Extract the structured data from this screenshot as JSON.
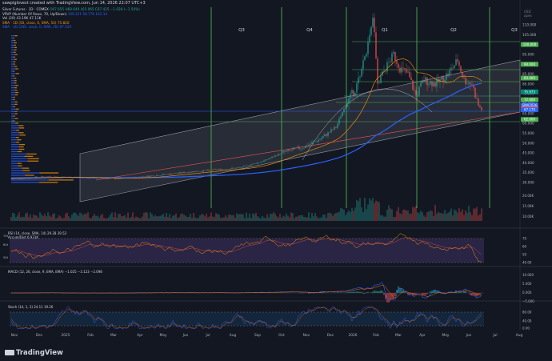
{
  "header": {
    "text": "sawpiglovest created with TradingView.com, Jun 14, 2026 22:07 UTC+3"
  },
  "legend": {
    "title": "Silver Futures · 1D · COMEX",
    "ohlc": "O67.655 H68.640 L65.065 C67.425 −1.028 (−1.50%)",
    "vrvp": "VRVP (Number Of Rows, 70, Up/Down)",
    "vrvp_vals": "109.221  58.77K  161.14",
    "vol": "Vol (20)  43.19K  47.11K",
    "sma50": "SMA · 1D (50, close, 0, SMA, 50)  75.820",
    "sma200": "SMA · 1D (200, close, 0, SMA, 20)  67.520"
  },
  "quarters": [
    "Q3",
    "Q4",
    "Q1",
    "Q2",
    "Q3"
  ],
  "price_axis": {
    "top_label": "USD",
    "top_label2": "apex",
    "ticks": [
      "110.000",
      "105.000",
      "100.000",
      "95.000",
      "90.000",
      "85.000",
      "80.000",
      "75.000",
      "70.000",
      "65.000",
      "60.000",
      "55.000",
      "50.000",
      "45.000",
      "40.000",
      "35.000",
      "30.000"
    ],
    "badges": [
      {
        "text": "100.000",
        "color": "#4caf50"
      },
      {
        "text": "90.000",
        "color": "#4caf50"
      },
      {
        "text": "83.000",
        "color": "#4caf50"
      },
      {
        "text": "75.973",
        "color": "#00897b"
      },
      {
        "text": "72.000",
        "color": "#4caf50"
      },
      {
        "text": "SMA2026",
        "color": "#2962ff"
      },
      {
        "text": "67.425",
        "color": "#ef5350"
      },
      {
        "text": "67.170",
        "color": "#2962ff"
      },
      {
        "text": "62.000",
        "color": "#4caf50"
      }
    ]
  },
  "vol_axis": {
    "ticks": [
      "20.00K",
      "15.00K",
      "10.00K"
    ]
  },
  "rsi": {
    "legend": "RSI (14, close, SMA, 14)  29.28  39.52",
    "legend2": "Accum/Dist  6.931K",
    "axis": [
      "70",
      "60",
      "50",
      "40.00"
    ],
    "left_labels": [
      "70t",
      "60t",
      "50t"
    ]
  },
  "macd": {
    "legend": "MACD (12, 26, close, 9, EMA, EMA)  −1.025  −3.123  −2.098",
    "axis": [
      "10.000",
      "5.000",
      "0.000",
      "−5.000"
    ]
  },
  "stoch": {
    "legend": "Stoch (14, 1, 3)  24.11  19.26",
    "axis": [
      "80.00",
      "40.00",
      "0.00"
    ]
  },
  "x_axis": {
    "labels": [
      "Nov",
      "Dec",
      "2025",
      "Feb",
      "Mar",
      "Apr",
      "May",
      "Jun",
      "Jul",
      "Aug",
      "Sep",
      "Oct",
      "Nov",
      "Dec",
      "2026",
      "Feb",
      "Mar",
      "Apr",
      "May",
      "Jun",
      "Jul",
      "Aug"
    ]
  },
  "brand": {
    "name": "TradingView"
  }
}
